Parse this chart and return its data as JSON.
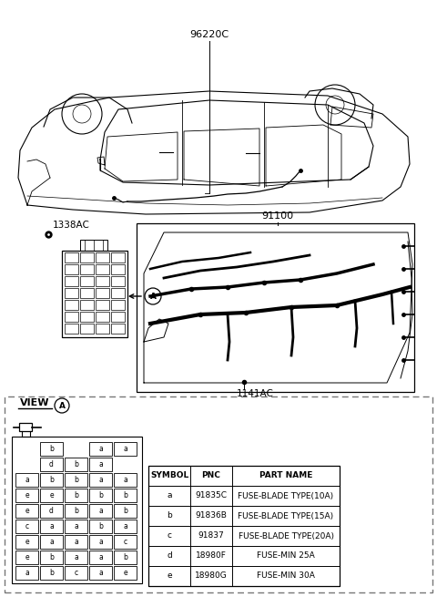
{
  "bg_color": "#ffffff",
  "label_96220C": "96220C",
  "label_91100": "91100",
  "label_1338AC": "1338AC",
  "label_1141AC": "1141AC",
  "label_view_A": "VIEW",
  "table_headers": [
    "SYMBOL",
    "PNC",
    "PART NAME"
  ],
  "table_rows": [
    [
      "a",
      "91835C",
      "FUSE-BLADE TYPE(10A)"
    ],
    [
      "b",
      "91836B",
      "FUSE-BLADE TYPE(15A)"
    ],
    [
      "c",
      "91837",
      "FUSE-BLADE TYPE(20A)"
    ],
    [
      "d",
      "18980F",
      "FUSE-MIN 25A"
    ],
    [
      "e",
      "18980G",
      "FUSE-MIN 30A"
    ]
  ],
  "fuse_grid": [
    [
      "",
      "b",
      "",
      "a",
      "a"
    ],
    [
      "",
      "d",
      "b",
      "a",
      ""
    ],
    [
      "a",
      "b",
      "b",
      "a",
      "a"
    ],
    [
      "e",
      "e",
      "b",
      "b",
      "b"
    ],
    [
      "e",
      "d",
      "b",
      "a",
      "b"
    ],
    [
      "c",
      "a",
      "a",
      "b",
      "a"
    ],
    [
      "e",
      "a",
      "a",
      "a",
      "c"
    ],
    [
      "e",
      "b",
      "a",
      "a",
      "b"
    ],
    [
      "a",
      "b",
      "c",
      "a",
      "e"
    ]
  ],
  "line_color": "#000000",
  "dashed_color": "#888888"
}
